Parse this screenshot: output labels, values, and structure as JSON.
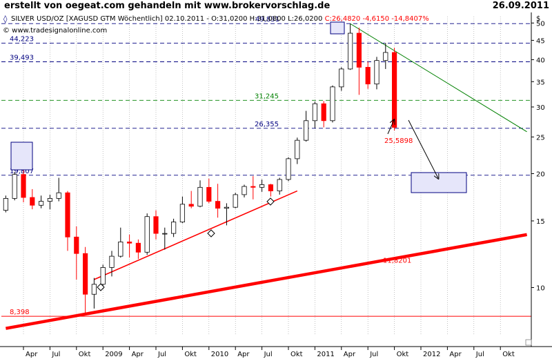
{
  "header": {
    "title": "erstellt von oegeat.com gehandeln mit www.brokervorschlag.de",
    "date": "26.09.2011"
  },
  "info_line": {
    "symbol": "SILVER USD/OZ [XAGUSD GTM  Wöchentlich] 02.10.2011 - ",
    "ohlc": "O:31,0200 H:31,0800 L:26,0200 ",
    "close": "C:26,4820 -4,6150 -14,8407%"
  },
  "watermark": "© www.tradesignalonline.com",
  "colors": {
    "up": "#000000",
    "down": "#ff0000",
    "blue_level": "#000080",
    "green": "#008000",
    "red": "#ff0000",
    "box_fill": "#e6e6fa",
    "box_border": "#000080"
  },
  "chart_data": {
    "type": "candlestick",
    "title": "SILVER USD/OZ [XAGUSD GTM Wöchentlich] 02.10.2011",
    "y_scale": "log",
    "ylim": [
      7.5,
      52
    ],
    "y_axis_unit": "$",
    "y_ticks": [
      10,
      15,
      20,
      25,
      30,
      35,
      40,
      45,
      50
    ],
    "x_ticks": [
      "Apr",
      "Jul",
      "Okt",
      "2009",
      "Apr",
      "Jul",
      "Okt",
      "2010",
      "Apr",
      "Jul",
      "Okt",
      "2011",
      "Apr",
      "Jul",
      "Okt",
      "2012",
      "Apr",
      "Jul",
      "Okt"
    ],
    "x_start": "2008-01",
    "x_end": "2012-12",
    "levels": [
      {
        "label": "49,831",
        "value": 49.831,
        "color": "#000080",
        "style": "dashed"
      },
      {
        "label": "44,223",
        "value": 44.223,
        "color": "#000080",
        "style": "dashed"
      },
      {
        "label": "39,493",
        "value": 39.493,
        "color": "#000080",
        "style": "dashed"
      },
      {
        "label": "31,245",
        "value": 31.245,
        "color": "#008000",
        "style": "dashed"
      },
      {
        "label": "26,355",
        "value": 26.355,
        "color": "#000080",
        "style": "dashed"
      },
      {
        "label": "19,807",
        "value": 19.807,
        "color": "#000080",
        "style": "dashed"
      },
      {
        "label": "8,398",
        "value": 8.398,
        "color": "#ff0000",
        "style": "solid"
      }
    ],
    "trendlines": [
      {
        "name": "support",
        "color": "#ff0000",
        "points": [
          [
            "2008-11",
            10.5
          ],
          [
            "2010-10",
            18
          ]
        ]
      },
      {
        "name": "long-term-support",
        "color": "#ff0000",
        "points": [
          [
            "2008-01",
            7.8
          ],
          [
            "2012-12",
            13.8
          ]
        ]
      },
      {
        "name": "resistance",
        "color": "#008000",
        "points": [
          [
            "2011-04",
            49.8
          ],
          [
            "2012-12",
            25.8
          ]
        ]
      }
    ],
    "annotations": [
      {
        "label": "25,5898",
        "value": 25.5898,
        "color": "#ff0000"
      },
      {
        "label": "11,8201",
        "value": 11.8201,
        "color": "#ff0000"
      }
    ],
    "series": [
      {
        "date": "2008-01",
        "open": 16.0,
        "high": 17.5,
        "low": 15.8,
        "close": 17.2
      },
      {
        "date": "2008-02",
        "open": 17.2,
        "high": 20.2,
        "low": 17.0,
        "close": 19.9
      },
      {
        "date": "2008-03",
        "open": 19.9,
        "high": 21.2,
        "low": 16.8,
        "close": 17.3
      },
      {
        "date": "2008-04",
        "open": 17.3,
        "high": 18.2,
        "low": 16.1,
        "close": 16.5
      },
      {
        "date": "2008-05",
        "open": 16.5,
        "high": 17.5,
        "low": 16.2,
        "close": 16.9
      },
      {
        "date": "2008-06",
        "open": 16.9,
        "high": 17.6,
        "low": 16.1,
        "close": 17.2
      },
      {
        "date": "2008-07",
        "open": 17.2,
        "high": 19.5,
        "low": 16.9,
        "close": 17.8
      },
      {
        "date": "2008-08",
        "open": 17.8,
        "high": 18.0,
        "low": 12.5,
        "close": 13.6
      },
      {
        "date": "2008-09",
        "open": 13.6,
        "high": 14.5,
        "low": 10.5,
        "close": 12.3
      },
      {
        "date": "2008-10",
        "open": 12.3,
        "high": 12.8,
        "low": 8.5,
        "close": 9.6
      },
      {
        "date": "2008-11",
        "open": 9.6,
        "high": 10.6,
        "low": 8.8,
        "close": 10.2
      },
      {
        "date": "2008-12",
        "open": 10.2,
        "high": 11.5,
        "low": 9.9,
        "close": 11.3
      },
      {
        "date": "2009-01",
        "open": 11.3,
        "high": 12.5,
        "low": 10.7,
        "close": 12.1
      },
      {
        "date": "2009-02",
        "open": 12.1,
        "high": 14.4,
        "low": 12.0,
        "close": 13.2
      },
      {
        "date": "2009-03",
        "open": 13.2,
        "high": 13.8,
        "low": 12.0,
        "close": 13.1
      },
      {
        "date": "2009-04",
        "open": 13.1,
        "high": 13.4,
        "low": 11.9,
        "close": 12.4
      },
      {
        "date": "2009-05",
        "open": 12.4,
        "high": 15.7,
        "low": 12.2,
        "close": 15.4
      },
      {
        "date": "2009-06",
        "open": 15.4,
        "high": 16.0,
        "low": 13.4,
        "close": 13.9
      },
      {
        "date": "2009-07",
        "open": 13.9,
        "high": 14.4,
        "low": 12.6,
        "close": 13.9
      },
      {
        "date": "2009-08",
        "open": 13.9,
        "high": 15.2,
        "low": 13.6,
        "close": 14.9
      },
      {
        "date": "2009-09",
        "open": 14.9,
        "high": 17.4,
        "low": 14.8,
        "close": 16.6
      },
      {
        "date": "2009-10",
        "open": 16.6,
        "high": 18.0,
        "low": 16.2,
        "close": 16.4
      },
      {
        "date": "2009-11",
        "open": 16.4,
        "high": 19.2,
        "low": 16.3,
        "close": 18.4
      },
      {
        "date": "2009-12",
        "open": 18.4,
        "high": 19.4,
        "low": 16.7,
        "close": 16.9
      },
      {
        "date": "2010-01",
        "open": 16.9,
        "high": 18.8,
        "low": 15.3,
        "close": 16.2
      },
      {
        "date": "2010-02",
        "open": 16.2,
        "high": 16.7,
        "low": 14.6,
        "close": 16.3
      },
      {
        "date": "2010-03",
        "open": 16.3,
        "high": 17.8,
        "low": 16.2,
        "close": 17.6
      },
      {
        "date": "2010-04",
        "open": 17.6,
        "high": 18.7,
        "low": 17.3,
        "close": 18.5
      },
      {
        "date": "2010-05",
        "open": 18.5,
        "high": 19.7,
        "low": 17.1,
        "close": 18.4
      },
      {
        "date": "2010-06",
        "open": 18.4,
        "high": 19.3,
        "low": 17.9,
        "close": 18.7
      },
      {
        "date": "2010-07",
        "open": 18.7,
        "high": 18.8,
        "low": 17.4,
        "close": 18.0
      },
      {
        "date": "2010-08",
        "open": 18.0,
        "high": 19.5,
        "low": 17.6,
        "close": 19.3
      },
      {
        "date": "2010-09",
        "open": 19.3,
        "high": 22.1,
        "low": 19.1,
        "close": 21.9
      },
      {
        "date": "2010-10",
        "open": 21.9,
        "high": 24.9,
        "low": 21.2,
        "close": 24.5
      },
      {
        "date": "2010-11",
        "open": 24.5,
        "high": 29.3,
        "low": 24.3,
        "close": 27.6
      },
      {
        "date": "2010-12",
        "open": 27.6,
        "high": 31.0,
        "low": 26.4,
        "close": 30.6
      },
      {
        "date": "2011-01",
        "open": 30.6,
        "high": 31.1,
        "low": 26.5,
        "close": 27.6
      },
      {
        "date": "2011-02",
        "open": 27.6,
        "high": 34.2,
        "low": 27.3,
        "close": 33.9
      },
      {
        "date": "2011-03",
        "open": 33.9,
        "high": 38.2,
        "low": 33.1,
        "close": 37.8
      },
      {
        "date": "2011-04",
        "open": 37.8,
        "high": 49.8,
        "low": 37.6,
        "close": 47.0
      },
      {
        "date": "2011-05",
        "open": 47.0,
        "high": 48.6,
        "low": 32.3,
        "close": 38.2
      },
      {
        "date": "2011-06",
        "open": 38.2,
        "high": 39.5,
        "low": 33.5,
        "close": 34.5
      },
      {
        "date": "2011-07",
        "open": 34.5,
        "high": 40.7,
        "low": 33.4,
        "close": 39.8
      },
      {
        "date": "2011-08",
        "open": 39.8,
        "high": 44.3,
        "low": 37.8,
        "close": 41.8
      },
      {
        "date": "2011-09",
        "open": 41.8,
        "high": 43.0,
        "low": 26.0,
        "close": 26.5
      }
    ]
  }
}
